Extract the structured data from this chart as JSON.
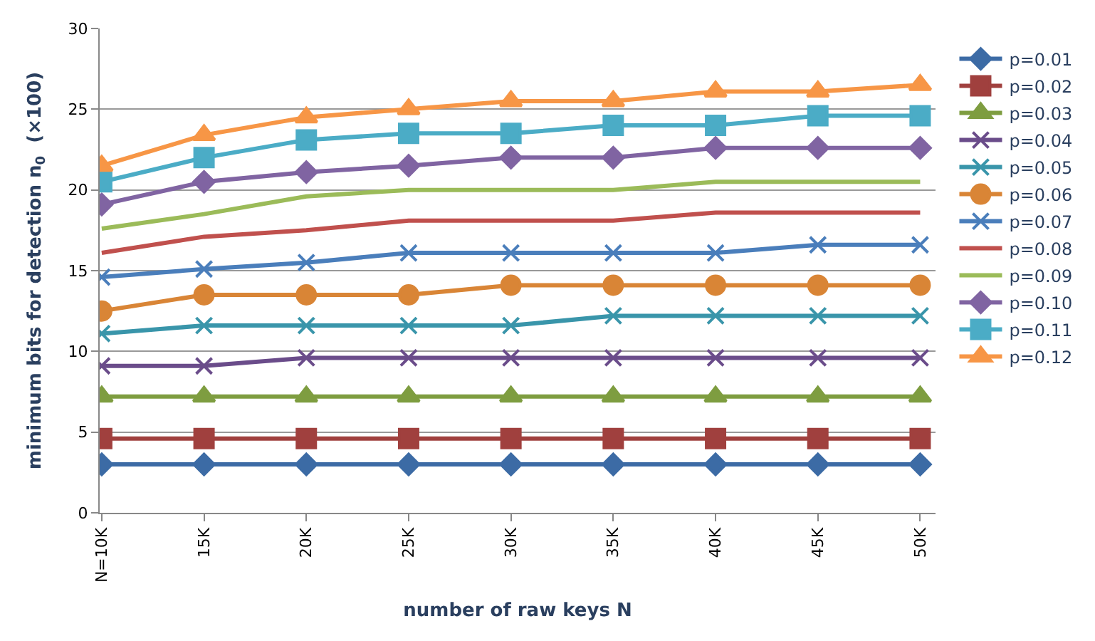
{
  "chart_data": {
    "type": "line",
    "xlabel": "number of raw keys N",
    "ylabel": "minimum bits for detection n$_{0}$  (×100)",
    "categories": [
      "N=10K",
      "15K",
      "20K",
      "25K",
      "30K",
      "35K",
      "40K",
      "45K",
      "50K"
    ],
    "ylim": [
      0,
      30
    ],
    "yticks": [
      0,
      5,
      10,
      15,
      20,
      25,
      30
    ],
    "grid": "y",
    "legend": "right",
    "line_style": "solid",
    "series": [
      {
        "name": "p=0.01",
        "color": "#3c6ba5",
        "marker": "diamond",
        "values": [
          3,
          3,
          3,
          3,
          3,
          3,
          3,
          3,
          3
        ]
      },
      {
        "name": "p=0.02",
        "color": "#a0403e",
        "marker": "square",
        "values": [
          4.6,
          4.6,
          4.6,
          4.6,
          4.6,
          4.6,
          4.6,
          4.6,
          4.6
        ]
      },
      {
        "name": "p=0.03",
        "color": "#7e9d40",
        "marker": "triangle",
        "values": [
          7.2,
          7.2,
          7.2,
          7.2,
          7.2,
          7.2,
          7.2,
          7.2,
          7.2
        ]
      },
      {
        "name": "p=0.04",
        "color": "#6a4c8a",
        "marker": "cross",
        "values": [
          9.1,
          9.1,
          9.6,
          9.6,
          9.6,
          9.6,
          9.6,
          9.6,
          9.6
        ]
      },
      {
        "name": "p=0.05",
        "color": "#3995aa",
        "marker": "cross",
        "values": [
          11.1,
          11.6,
          11.6,
          11.6,
          11.6,
          12.2,
          12.2,
          12.2,
          12.2
        ]
      },
      {
        "name": "p=0.06",
        "color": "#d98536",
        "marker": "circle",
        "values": [
          12.5,
          13.5,
          13.5,
          13.5,
          14.1,
          14.1,
          14.1,
          14.1,
          14.1
        ]
      },
      {
        "name": "p=0.07",
        "color": "#4a7ebb",
        "marker": "cross",
        "values": [
          14.6,
          15.1,
          15.5,
          16.1,
          16.1,
          16.1,
          16.1,
          16.6,
          16.6
        ]
      },
      {
        "name": "p=0.08",
        "color": "#c0504d",
        "marker": "none",
        "values": [
          16.1,
          17.1,
          17.5,
          18.1,
          18.1,
          18.1,
          18.6,
          18.6,
          18.6
        ]
      },
      {
        "name": "p=0.09",
        "color": "#9bbb59",
        "marker": "none",
        "values": [
          17.6,
          18.5,
          19.6,
          20.0,
          20.0,
          20.0,
          20.5,
          20.5,
          20.5
        ]
      },
      {
        "name": "p=0.10",
        "color": "#8064a2",
        "marker": "diamond",
        "values": [
          19.1,
          20.5,
          21.1,
          21.5,
          22.0,
          22.0,
          22.6,
          22.6,
          22.6
        ]
      },
      {
        "name": "p=0.11",
        "color": "#4bacc6",
        "marker": "square",
        "values": [
          20.5,
          22.0,
          23.1,
          23.5,
          23.5,
          24.0,
          24.0,
          24.6,
          24.6
        ]
      },
      {
        "name": "p=0.12",
        "color": "#f79646",
        "marker": "triangle",
        "values": [
          21.5,
          23.4,
          24.5,
          25.0,
          25.5,
          25.5,
          26.1,
          26.1,
          26.5
        ]
      }
    ]
  }
}
